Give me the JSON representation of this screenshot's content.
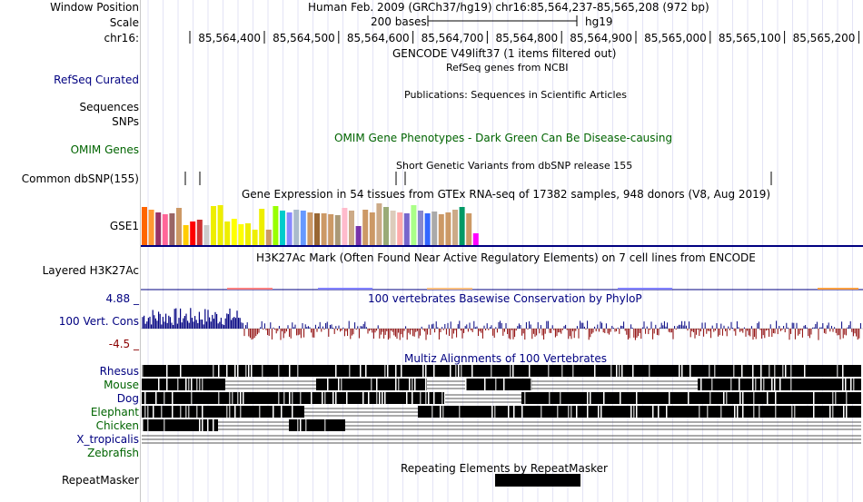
{
  "header": {
    "window_position_label": "Window Position",
    "window_position_value": "Human Feb. 2009 (GRCh37/hg19)   chr16:85,564,237-85,565,208 (972 bp)",
    "scale_label": "Scale",
    "scale_value": "200 bases",
    "assembly": "hg19",
    "chrom_label": "chr16:",
    "ruler_ticks": [
      "85,564,400",
      "85,564,500",
      "85,564,600",
      "85,564,700",
      "85,564,800",
      "85,564,900",
      "85,565,000",
      "85,565,100",
      "85,565,200"
    ]
  },
  "tracks": {
    "gencode": {
      "title": "GENCODE V49lift37 (1 items filtered out)"
    },
    "refseq": {
      "label": "RefSeq Curated",
      "title": "RefSeq genes from NCBI"
    },
    "publications": {
      "title": "Publications: Sequences in Scientific Articles"
    },
    "sequences": {
      "label": "Sequences"
    },
    "snps": {
      "label": "SNPs"
    },
    "omim": {
      "label": "OMIM Genes",
      "title": "OMIM Gene Phenotypes - Dark Green Can Be Disease-causing"
    },
    "dbsnp": {
      "label": "Common dbSNP(155)",
      "title": "Short Genetic Variants from dbSNP release 155"
    },
    "gtex": {
      "label": "GSE1",
      "title": "Gene Expression in 54 tissues from GTEx RNA-seq of 17382 samples, 948 donors (V8, Aug 2019)"
    },
    "h3k27ac": {
      "label": "Layered H3K27Ac",
      "title": "H3K27Ac Mark (Often Found Near Active Regulatory Elements) on 7 cell lines from ENCODE"
    },
    "conservation": {
      "label": "100 Vert. Cons",
      "ymax": "4.88 _",
      "ymin": "-4.5 _",
      "title": "100 vertebrates Basewise Conservation by PhyloP"
    },
    "multiz": {
      "title": "Multiz Alignments of 100 Vertebrates",
      "species": [
        "Rhesus",
        "Mouse",
        "Dog",
        "Elephant",
        "Chicken",
        "X_tropicalis",
        "Zebrafish"
      ]
    },
    "repeatmasker": {
      "label": "RepeatMasker",
      "title": "Repeating Elements by RepeatMasker"
    }
  },
  "colors": {
    "track_blue": "#000080",
    "omim_green": "#006400",
    "phylop_pos": "#000080",
    "phylop_neg": "#8b0000",
    "multiz_green": "#006400"
  }
}
